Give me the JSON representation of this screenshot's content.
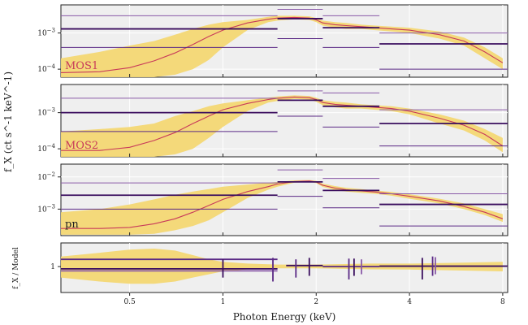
{
  "chart_data": {
    "type": "line",
    "title": "",
    "xlabel": "Photon Energy (keV)",
    "ylabel": "f_X (ct s^-1 keV^-1)",
    "ratio_ylabel": "f_X / Model",
    "xscale": "log",
    "xlim": [
      0.3,
      8.3
    ],
    "x_ticks": [
      "0.5",
      "1",
      "2",
      "4",
      "8"
    ],
    "colors": {
      "band": "#f3d773",
      "model": "#c83a5a",
      "dark": "#3a0d5e",
      "mid": "#5b2a86",
      "light": "#8a5aa8"
    },
    "panels": [
      {
        "label": "MOS1",
        "label_color": "#c83a5a",
        "ylim": [
          6e-05,
          0.006
        ],
        "yticks": [
          "10^-4",
          "10^-3"
        ],
        "model": {
          "x": [
            0.3,
            0.4,
            0.5,
            0.6,
            0.7,
            0.8,
            0.9,
            1.0,
            1.2,
            1.4,
            1.5,
            1.7,
            1.9,
            2.0,
            2.1,
            2.3,
            2.5,
            2.8,
            3.1,
            3.5,
            4.0,
            5.0,
            6.0,
            7.0,
            8.0
          ],
          "y": [
            8e-05,
            8.5e-05,
            0.00011,
            0.00017,
            0.00028,
            0.00048,
            0.0008,
            0.0012,
            0.0019,
            0.0024,
            0.0026,
            0.0027,
            0.0026,
            0.0023,
            0.0019,
            0.0017,
            0.0016,
            0.0015,
            0.0014,
            0.0013,
            0.0012,
            0.0009,
            0.0006,
            0.0003,
            0.00015
          ]
        },
        "band": {
          "upper": [
            0.0002,
            0.0003,
            0.00045,
            0.0006,
            0.0009,
            0.0013,
            0.0017,
            0.002,
            0.0023,
            0.0028,
            0.003,
            0.003,
            0.0029,
            0.0026,
            0.0022,
            0.002,
            0.0019,
            0.0017,
            0.0016,
            0.0015,
            0.0014,
            0.0011,
            0.00075,
            0.0004,
            0.0002
          ],
          "lower": [
            6e-05,
            6e-05,
            6e-05,
            6e-05,
            7e-05,
            0.0001,
            0.00018,
            0.0004,
            0.0012,
            0.002,
            0.0022,
            0.0024,
            0.0023,
            0.002,
            0.0016,
            0.0014,
            0.0013,
            0.0013,
            0.0012,
            0.0011,
            0.001,
            0.0007,
            0.00045,
            0.0002,
            0.0001
          ]
        },
        "bins": [
          {
            "x0": 0.3,
            "x1": 1.5,
            "mid": 0.0013,
            "hi": 0.003,
            "lo": 0.0004
          },
          {
            "x0": 1.5,
            "x1": 2.1,
            "mid": 0.0025,
            "hi": 0.0045,
            "lo": 0.0007
          },
          {
            "x0": 2.1,
            "x1": 3.2,
            "mid": 0.0014,
            "hi": 0.003,
            "lo": 0.0004
          },
          {
            "x0": 3.2,
            "x1": 8.3,
            "mid": 0.0005,
            "hi": 0.001,
            "lo": 0.0001
          }
        ]
      },
      {
        "label": "MOS2",
        "label_color": "#c83a5a",
        "ylim": [
          6e-05,
          0.006
        ],
        "yticks": [
          "10^-4",
          "10^-3"
        ],
        "model": {
          "x": [
            0.3,
            0.4,
            0.5,
            0.6,
            0.7,
            0.8,
            0.9,
            1.0,
            1.2,
            1.4,
            1.5,
            1.7,
            1.9,
            2.0,
            2.1,
            2.3,
            2.5,
            2.8,
            3.1,
            3.5,
            4.0,
            5.0,
            6.0,
            7.0,
            8.0
          ],
          "y": [
            9e-05,
            9e-05,
            0.00011,
            0.00017,
            0.00028,
            0.0005,
            0.0008,
            0.0012,
            0.0018,
            0.0023,
            0.0025,
            0.0027,
            0.0026,
            0.0023,
            0.0019,
            0.0017,
            0.0016,
            0.0015,
            0.0014,
            0.0013,
            0.0011,
            0.0007,
            0.00045,
            0.00025,
            0.00012
          ]
        },
        "band": {
          "upper": [
            0.0003,
            0.00035,
            0.0004,
            0.0005,
            0.0008,
            0.0011,
            0.0015,
            0.0018,
            0.0022,
            0.0026,
            0.0028,
            0.003,
            0.0029,
            0.0026,
            0.0022,
            0.002,
            0.0019,
            0.0017,
            0.0016,
            0.0015,
            0.0013,
            0.0009,
            0.0006,
            0.00035,
            0.0002
          ],
          "lower": [
            6e-05,
            6e-05,
            6e-05,
            6e-05,
            7e-05,
            0.0001,
            0.0002,
            0.0004,
            0.0011,
            0.0019,
            0.0021,
            0.0024,
            0.0023,
            0.002,
            0.0016,
            0.0014,
            0.0013,
            0.0013,
            0.0012,
            0.0011,
            0.0009,
            0.0005,
            0.00032,
            0.00017,
            8e-05
          ]
        },
        "bins": [
          {
            "x0": 0.3,
            "x1": 1.5,
            "mid": 0.001,
            "hi": 0.0025,
            "lo": 0.0003
          },
          {
            "x0": 1.5,
            "x1": 2.1,
            "mid": 0.0022,
            "hi": 0.004,
            "lo": 0.0008
          },
          {
            "x0": 2.1,
            "x1": 3.2,
            "mid": 0.0015,
            "hi": 0.0035,
            "lo": 0.0004
          },
          {
            "x0": 3.2,
            "x1": 8.3,
            "mid": 0.0005,
            "hi": 0.0012,
            "lo": 0.00012
          }
        ]
      },
      {
        "label": "pn",
        "label_color": "#222222",
        "ylim": [
          0.00015,
          0.025
        ],
        "yticks": [
          "10^-3",
          "10^-2"
        ],
        "model": {
          "x": [
            0.3,
            0.4,
            0.5,
            0.6,
            0.7,
            0.8,
            0.9,
            1.0,
            1.2,
            1.4,
            1.5,
            1.7,
            1.9,
            2.0,
            2.1,
            2.3,
            2.5,
            2.8,
            3.1,
            3.5,
            4.0,
            5.0,
            6.0,
            7.0,
            8.0
          ],
          "y": [
            0.00025,
            0.00025,
            0.00027,
            0.00035,
            0.0005,
            0.0008,
            0.0013,
            0.002,
            0.0035,
            0.005,
            0.006,
            0.0072,
            0.0075,
            0.007,
            0.0055,
            0.0045,
            0.004,
            0.0037,
            0.0034,
            0.003,
            0.0025,
            0.0018,
            0.0012,
            0.0008,
            0.0005
          ]
        },
        "band": {
          "upper": [
            0.0008,
            0.001,
            0.0014,
            0.002,
            0.0028,
            0.0035,
            0.0042,
            0.005,
            0.0058,
            0.0066,
            0.007,
            0.0078,
            0.008,
            0.0076,
            0.0062,
            0.0052,
            0.0046,
            0.0042,
            0.0038,
            0.0034,
            0.0029,
            0.0021,
            0.0015,
            0.001,
            0.0007
          ],
          "lower": [
            0.00016,
            0.00016,
            0.00016,
            0.00017,
            0.00022,
            0.0003,
            0.00045,
            0.0008,
            0.0022,
            0.004,
            0.005,
            0.0066,
            0.007,
            0.0064,
            0.0049,
            0.0039,
            0.0035,
            0.0032,
            0.003,
            0.0026,
            0.0021,
            0.0015,
            0.001,
            0.00065,
            0.0004
          ]
        },
        "bins": [
          {
            "x0": 0.3,
            "x1": 1.5,
            "mid": 0.0027,
            "hi": 0.0065,
            "lo": 0.001
          },
          {
            "x0": 1.5,
            "x1": 2.1,
            "mid": 0.007,
            "hi": 0.0165,
            "lo": 0.0025
          },
          {
            "x0": 2.1,
            "x1": 3.2,
            "mid": 0.0038,
            "hi": 0.009,
            "lo": 0.0011
          },
          {
            "x0": 3.2,
            "x1": 8.3,
            "mid": 0.0014,
            "hi": 0.003,
            "lo": 0.0003
          }
        ]
      }
    ],
    "ratio": {
      "ylim": [
        0.3,
        3.0
      ],
      "yticks": [
        "1"
      ],
      "band": {
        "x": [
          0.3,
          0.4,
          0.5,
          0.6,
          0.7,
          0.8,
          0.9,
          1.0,
          1.2,
          1.5,
          2.0,
          3.0,
          4.0,
          6.0,
          8.0
        ],
        "upper": [
          1.6,
          1.9,
          2.2,
          2.3,
          2.1,
          1.7,
          1.4,
          1.25,
          1.15,
          1.1,
          1.1,
          1.15,
          1.15,
          1.2,
          1.25
        ],
        "lower": [
          0.6,
          0.5,
          0.45,
          0.45,
          0.5,
          0.6,
          0.7,
          0.8,
          0.88,
          0.92,
          0.92,
          0.88,
          0.87,
          0.83,
          0.8
        ]
      },
      "hbins": [
        {
          "x0": 0.3,
          "x1": 1.5,
          "y": 1.4,
          "color": "#5b2a86"
        },
        {
          "x0": 0.3,
          "x1": 1.5,
          "y": 0.9,
          "color": "#3a0d5e"
        },
        {
          "x0": 0.3,
          "x1": 1.5,
          "y": 0.82,
          "color": "#8a5aa8"
        },
        {
          "x0": 1.6,
          "x1": 2.1,
          "y": 1.05,
          "color": "#3a0d5e"
        },
        {
          "x0": 2.1,
          "x1": 3.2,
          "y": 1.0,
          "color": "#5b2a86"
        },
        {
          "x0": 3.2,
          "x1": 8.3,
          "y": 1.02,
          "color": "#3a0d5e"
        }
      ],
      "errorbars": [
        {
          "x": 1.0,
          "lo": 0.6,
          "hi": 1.4,
          "color": "#3a0d5e"
        },
        {
          "x": 1.45,
          "lo": 0.5,
          "hi": 1.5,
          "color": "#5b2a86"
        },
        {
          "x": 1.72,
          "lo": 0.6,
          "hi": 1.4,
          "color": "#5b2a86"
        },
        {
          "x": 1.9,
          "lo": 0.65,
          "hi": 1.5,
          "color": "#3a0d5e"
        },
        {
          "x": 2.55,
          "lo": 0.55,
          "hi": 1.45,
          "color": "#5b2a86"
        },
        {
          "x": 2.65,
          "lo": 0.65,
          "hi": 1.45,
          "color": "#3a0d5e"
        },
        {
          "x": 2.8,
          "lo": 0.7,
          "hi": 1.4,
          "color": "#8a5aa8"
        },
        {
          "x": 4.4,
          "lo": 0.55,
          "hi": 1.5,
          "color": "#3a0d5e"
        },
        {
          "x": 4.75,
          "lo": 0.65,
          "hi": 1.6,
          "color": "#5b2a86"
        },
        {
          "x": 4.85,
          "lo": 0.7,
          "hi": 1.55,
          "color": "#8a5aa8"
        }
      ]
    }
  }
}
